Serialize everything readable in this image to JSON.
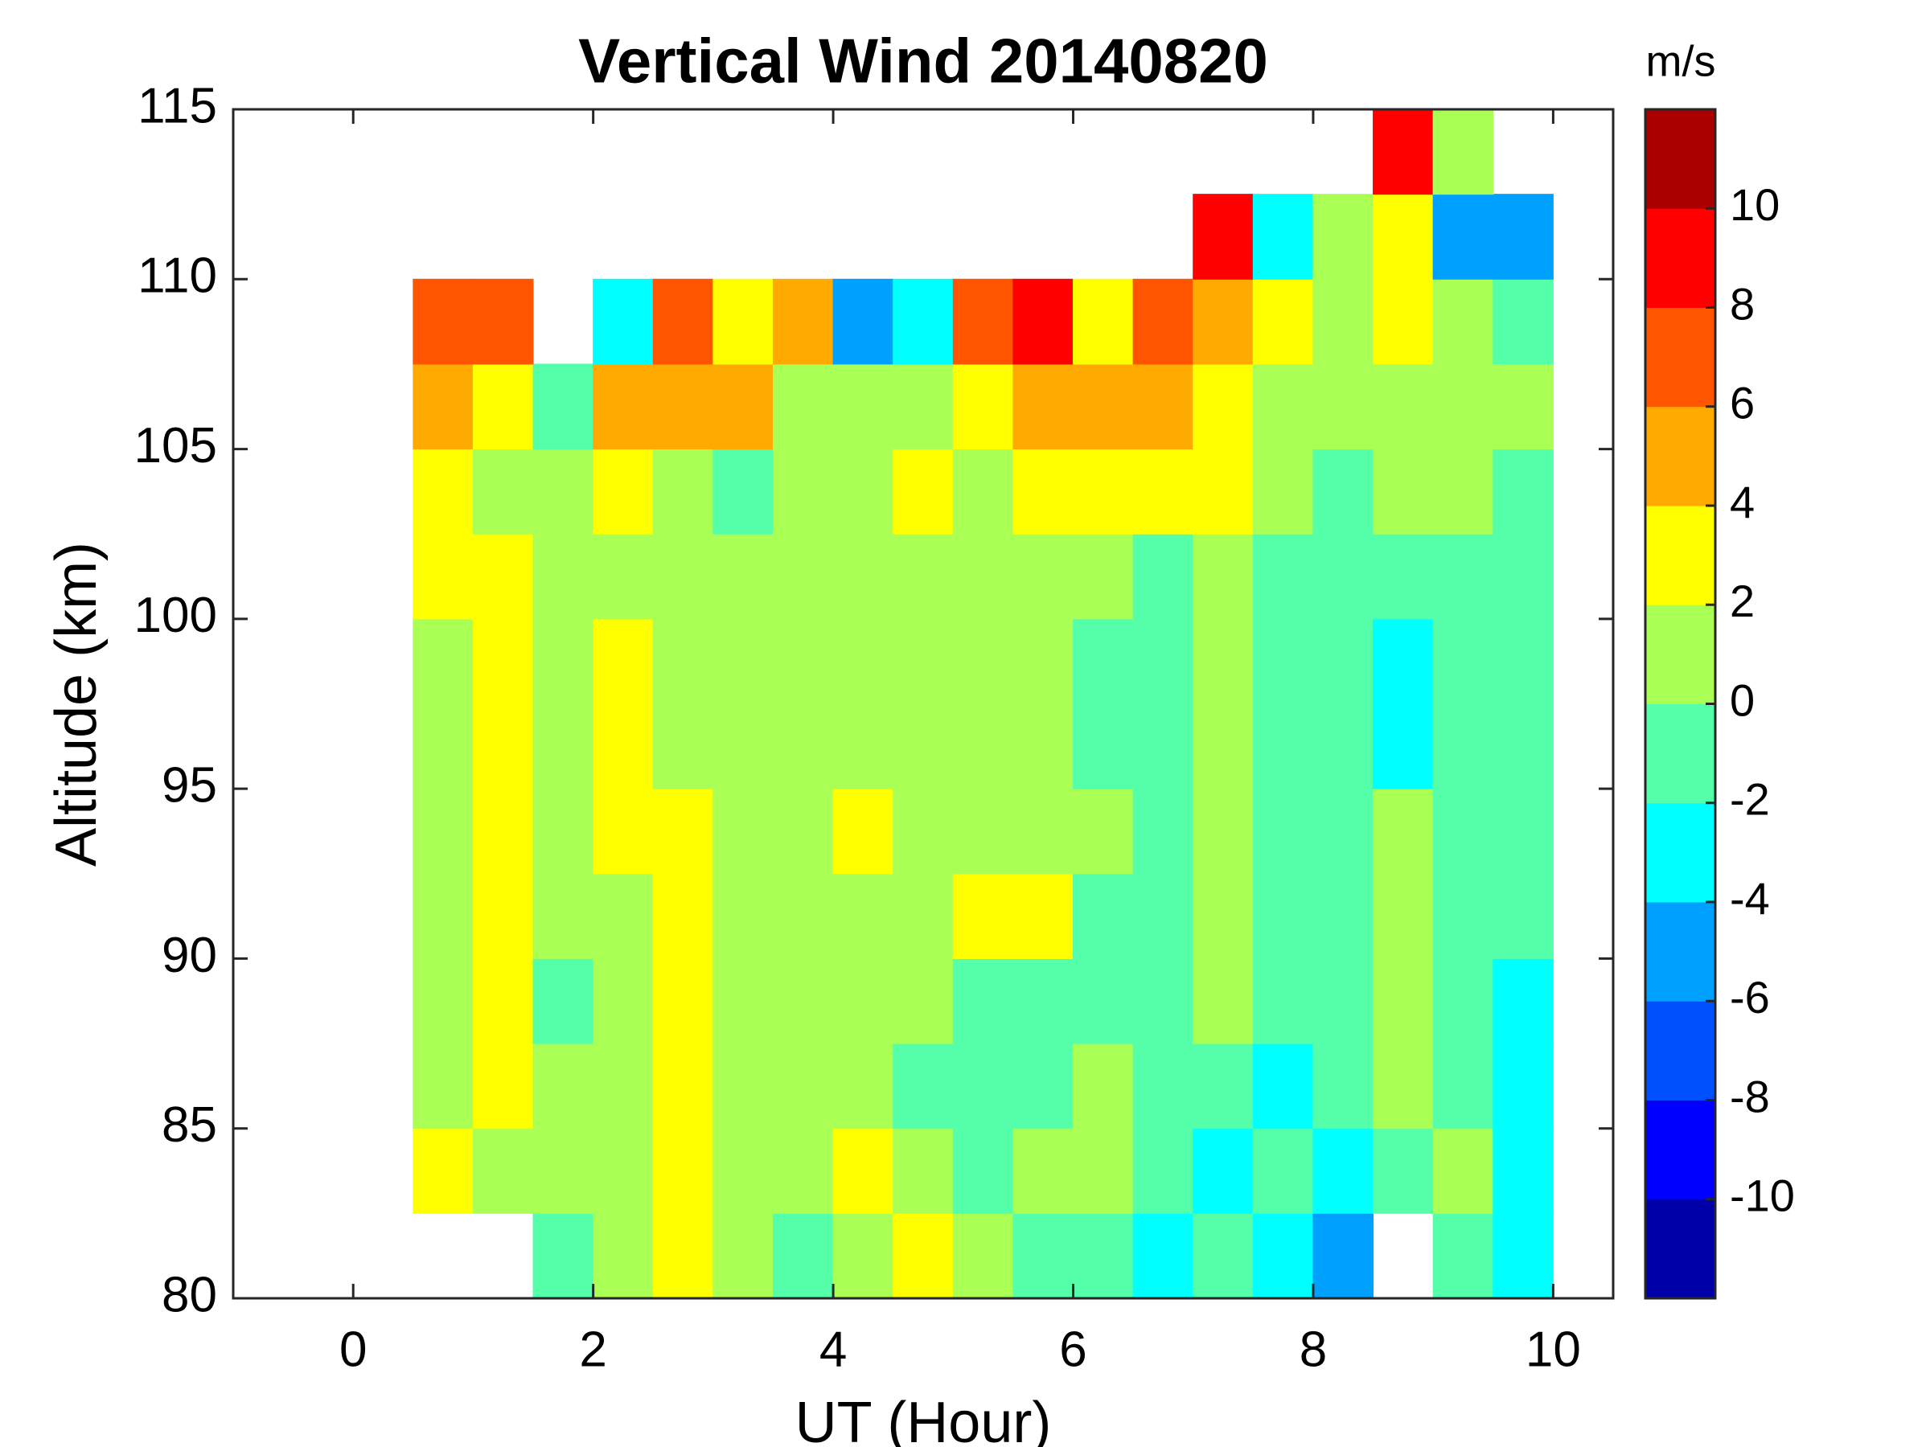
{
  "chart_data": {
    "type": "contour",
    "title": "Vertical Wind 20140820",
    "x_label": "UT (Hour)",
    "y_label": "Altitude (km)",
    "colorbar_label": "m/s",
    "xlim": [
      -1,
      10.5
    ],
    "xticks": [
      0,
      2,
      4,
      6,
      8,
      10
    ],
    "ylim": [
      80,
      115
    ],
    "yticks": [
      80,
      85,
      90,
      95,
      100,
      105,
      110,
      115
    ],
    "clim": [
      -12,
      12
    ],
    "cticks": [
      -10,
      -8,
      -6,
      -4,
      -2,
      0,
      2,
      4,
      6,
      8,
      10
    ],
    "levels": [
      -12,
      -10,
      -8,
      -6,
      -4,
      -2,
      0,
      2,
      4,
      6,
      8,
      10,
      12
    ],
    "colors": [
      "#0000a8",
      "#0000ff",
      "#0050ff",
      "#00a0ff",
      "#00ffff",
      "#55ffaa",
      "#aaff55",
      "#ffff00",
      "#ffaa00",
      "#ff5500",
      "#ff0000",
      "#aa0000"
    ],
    "x": [
      0.75,
      1.25,
      1.75,
      2.25,
      2.75,
      3.25,
      3.75,
      4.25,
      4.75,
      5.25,
      5.75,
      6.25,
      6.75,
      7.25,
      7.75,
      8.25,
      8.75,
      9.25,
      9.75
    ],
    "y": [
      81.25,
      83.75,
      86.25,
      88.75,
      91.25,
      93.75,
      96.25,
      98.75,
      101.25,
      103.75,
      106.25,
      108.75,
      111.25,
      113.75
    ],
    "z": [
      [
        null,
        null,
        -1,
        1,
        3,
        1,
        -1,
        1,
        3,
        1,
        -1,
        -1,
        -3,
        -1,
        -3,
        -5,
        null,
        -1,
        -3
      ],
      [
        3,
        1,
        1,
        1,
        3,
        1,
        1,
        3,
        1,
        -1,
        1,
        1,
        -1,
        -3,
        -1,
        -3,
        -1,
        1,
        -3
      ],
      [
        1,
        3,
        1,
        1,
        3,
        1,
        1,
        1,
        -1,
        -1,
        -1,
        1,
        -1,
        -1,
        -3,
        -1,
        1,
        -1,
        -3
      ],
      [
        1,
        3,
        -1,
        1,
        3,
        1,
        1,
        1,
        1,
        -1,
        -1,
        -1,
        -1,
        1,
        -1,
        -1,
        1,
        -1,
        -3
      ],
      [
        1,
        3,
        1,
        1,
        3,
        1,
        1,
        1,
        1,
        3,
        3,
        -1,
        -1,
        1,
        -1,
        -1,
        1,
        -1,
        -1
      ],
      [
        1,
        3,
        1,
        3,
        3,
        1,
        1,
        3,
        1,
        1,
        1,
        1,
        -1,
        1,
        -1,
        -1,
        1,
        -1,
        -1
      ],
      [
        1,
        3,
        1,
        3,
        1,
        1,
        1,
        1,
        1,
        1,
        1,
        -1,
        -1,
        1,
        -1,
        -1,
        -3,
        -1,
        -1
      ],
      [
        1,
        3,
        1,
        3,
        1,
        1,
        1,
        1,
        1,
        1,
        1,
        -1,
        -1,
        1,
        -1,
        -1,
        -3,
        -1,
        -1
      ],
      [
        3,
        3,
        1,
        1,
        1,
        1,
        1,
        1,
        1,
        1,
        1,
        1,
        -1,
        1,
        -1,
        -1,
        -1,
        -1,
        -1
      ],
      [
        3,
        1,
        1,
        3,
        1,
        -1,
        1,
        1,
        3,
        1,
        3,
        3,
        3,
        3,
        1,
        -1,
        1,
        1,
        -1
      ],
      [
        5,
        3,
        -1,
        5,
        5,
        5,
        1,
        1,
        1,
        3,
        5,
        5,
        5,
        3,
        1,
        1,
        1,
        1,
        1
      ],
      [
        7,
        7,
        null,
        -3,
        7,
        3,
        5,
        -5,
        -3,
        7,
        9,
        3,
        7,
        5,
        3,
        1,
        3,
        1,
        -1
      ],
      [
        null,
        null,
        null,
        null,
        null,
        null,
        null,
        null,
        null,
        null,
        null,
        null,
        null,
        9,
        -3,
        1,
        3,
        -5,
        -5
      ],
      [
        null,
        null,
        null,
        null,
        null,
        null,
        null,
        null,
        null,
        null,
        null,
        null,
        null,
        null,
        null,
        null,
        9,
        1,
        null
      ]
    ]
  }
}
